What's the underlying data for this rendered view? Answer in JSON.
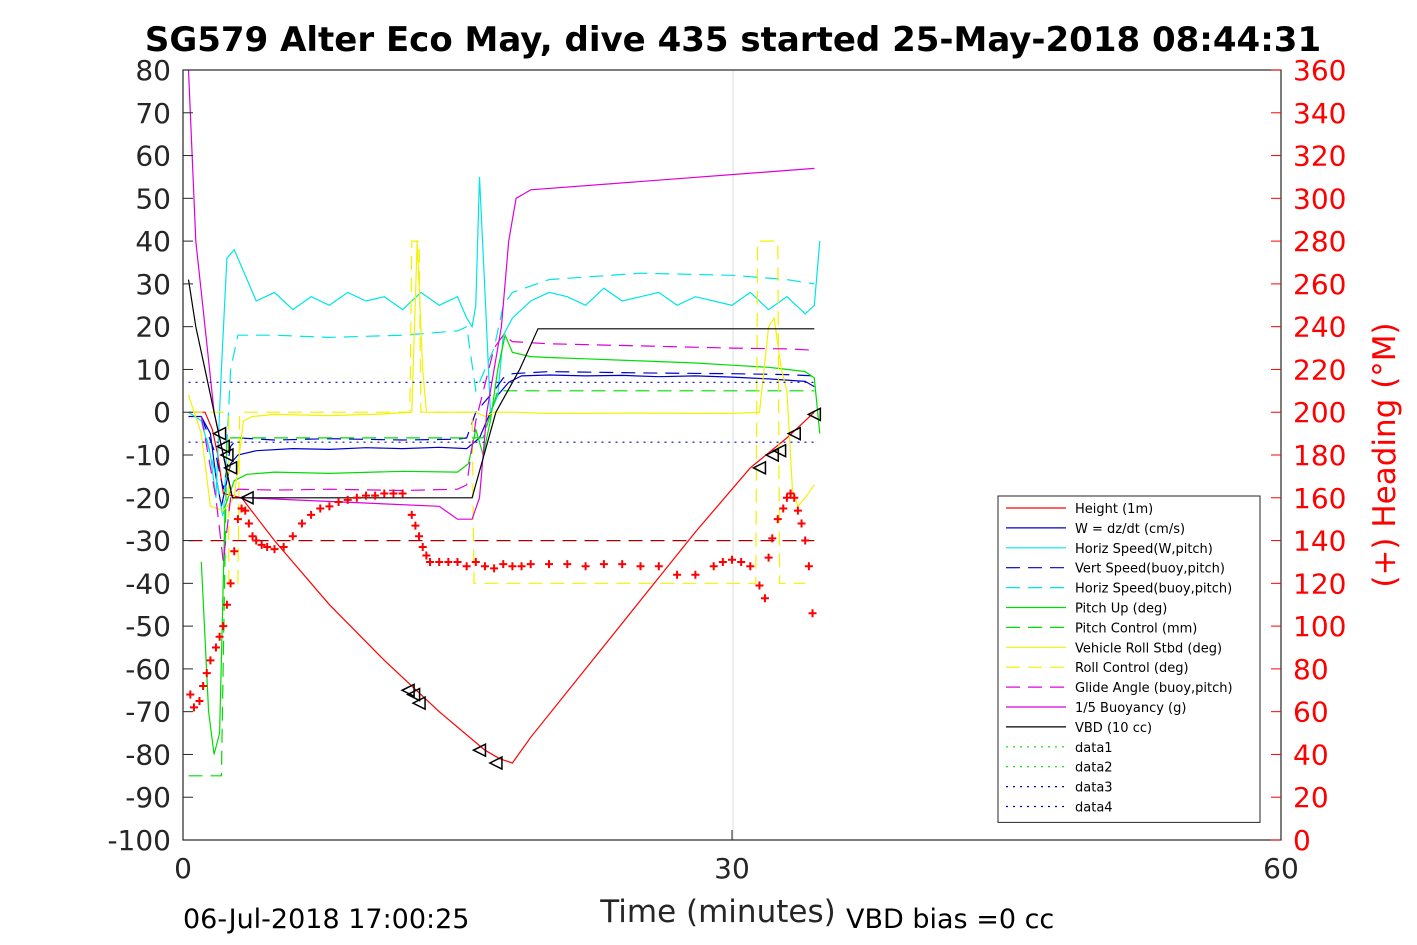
{
  "chart_data": {
    "type": "line",
    "title": "SG579 Alter Eco May, dive 435 started 25-May-2018 08:44:31",
    "xlabel": "Time (minutes)",
    "ylabel": "",
    "y2label": "(+) Heading (°M)",
    "xlim": [
      0,
      60
    ],
    "ylim": [
      -100,
      80
    ],
    "y2lim": [
      0,
      360
    ],
    "xticks": [
      "0",
      "30",
      "60"
    ],
    "yticks": [
      "80",
      "70",
      "60",
      "50",
      "40",
      "30",
      "20",
      "10",
      "0",
      "-10",
      "-20",
      "-30",
      "-40",
      "-50",
      "-60",
      "-70",
      "-80",
      "-90",
      "-100"
    ],
    "y2ticks": [
      "360",
      "340",
      "320",
      "300",
      "280",
      "260",
      "240",
      "220",
      "200",
      "180",
      "160",
      "140",
      "120",
      "100",
      "80",
      "60",
      "40",
      "20",
      "0"
    ],
    "grid": "x-only",
    "legend_position": "lower-right",
    "footer_left": "06-Jul-2018 17:00:25",
    "footer_right": "VBD bias =0 cc",
    "series": [
      {
        "name": "Height (1m)",
        "color": "#ff0000",
        "dash": "solid",
        "x": [
          0.3,
          1.2,
          1.6,
          1.9,
          2.2,
          3.2,
          5,
          8,
          11,
          14,
          16.5,
          17.3,
          18,
          19,
          22,
          25,
          28,
          31,
          33,
          34.5
        ],
        "y": [
          0,
          0,
          -4,
          -10,
          -19,
          -20,
          -30,
          -45,
          -58,
          -70,
          -79,
          -81,
          -82,
          -76,
          -60,
          -44,
          -28,
          -13,
          -6,
          0
        ]
      },
      {
        "name": "W = dz/dt (cm/s)",
        "color": "#0000cc",
        "dash": "solid",
        "x": [
          0.3,
          1,
          1.5,
          1.8,
          2.1,
          2.6,
          3,
          4,
          6,
          8,
          10,
          12,
          14,
          15.5,
          16.2,
          16.8,
          17.2,
          17.8,
          18.5,
          20,
          22,
          24,
          26,
          28,
          30,
          32,
          33,
          34,
          34.5
        ],
        "y": [
          -1,
          -1,
          -5,
          -15,
          -22,
          -12,
          -10,
          -9,
          -8.5,
          -8.7,
          -8.3,
          -8.5,
          -8.2,
          -8.5,
          -6,
          0,
          4,
          7,
          8.5,
          8.7,
          8.5,
          8.6,
          8.3,
          8.5,
          8.2,
          7.8,
          7.5,
          7.2,
          6
        ]
      },
      {
        "name": "Horiz Speed(W,pitch)",
        "color": "#00e5e5",
        "dash": "solid",
        "x": [
          0.3,
          1,
          1.5,
          1.8,
          2.1,
          2.4,
          2.8,
          3.5,
          4,
          5,
          6,
          7,
          8,
          9,
          10,
          11,
          12,
          13,
          14,
          15,
          15.5,
          15.8,
          16,
          16.2,
          16.5,
          16.8,
          17.2,
          17.5,
          18,
          19,
          20,
          21,
          22,
          23,
          24,
          25,
          26,
          27,
          28,
          29,
          30,
          31,
          32,
          33,
          34,
          34.5,
          34.8
        ],
        "y": [
          0,
          -2,
          -10,
          -20,
          10,
          36,
          38,
          31,
          26,
          28,
          24,
          27,
          25,
          28,
          26,
          27,
          24,
          28,
          25,
          27,
          22,
          20,
          25,
          55,
          28,
          0,
          4,
          18,
          22,
          26,
          28,
          27,
          25,
          29,
          26,
          27,
          28,
          25,
          27,
          26,
          25,
          28,
          24,
          27,
          23,
          25,
          40
        ]
      },
      {
        "name": "Vert Speed(buoy,pitch)",
        "color": "#0000cc",
        "dash": "dash",
        "x": [
          1,
          1.8,
          2.2,
          2.6,
          3,
          5,
          8,
          12,
          15,
          15.5,
          16,
          17,
          17.5,
          18,
          20,
          25,
          30,
          33,
          34.5
        ],
        "y": [
          -1,
          -10,
          -18,
          -8,
          -6,
          -6.5,
          -6.2,
          -6.5,
          -6.3,
          -6,
          0,
          5,
          8,
          9,
          9.5,
          9.2,
          9,
          8.8,
          8.5
        ]
      },
      {
        "name": "Horiz Speed(buoy,pitch)",
        "color": "#00e5e5",
        "dash": "dash",
        "x": [
          1,
          1.8,
          2.2,
          2.6,
          3,
          5,
          8,
          12,
          15,
          15.5,
          16,
          17,
          17.5,
          18,
          20,
          25,
          30,
          33,
          34.5
        ],
        "y": [
          -1,
          -15,
          -25,
          10,
          18,
          18,
          17.5,
          18,
          19,
          20,
          5,
          15,
          25,
          28,
          31,
          32.5,
          32,
          31,
          30
        ]
      },
      {
        "name": "Pitch Up (deg)",
        "color": "#00dd00",
        "dash": "solid",
        "x": [
          1,
          1.4,
          1.7,
          2,
          2.3,
          2.8,
          3.5,
          5,
          8,
          12,
          15,
          15.6,
          16,
          16.4,
          16.8,
          17.2,
          17.6,
          18,
          19,
          20,
          22,
          25,
          28,
          30,
          32,
          33,
          34,
          34.5,
          34.8
        ],
        "y": [
          -35,
          -70,
          -80,
          -75,
          -22,
          -16,
          -14.5,
          -14,
          -14.3,
          -13.8,
          -14,
          -12,
          -4,
          -10,
          -2,
          10,
          18,
          14,
          13,
          12.8,
          12.5,
          12,
          11.5,
          11,
          10.5,
          10,
          9.5,
          8,
          -5
        ]
      },
      {
        "name": "Pitch Control (mm)",
        "color": "#00dd00",
        "dash": "dash",
        "x": [
          0.3,
          1.2,
          1.6,
          2.1,
          2.4,
          3,
          16,
          16.4,
          17.2,
          17.6,
          34.5
        ],
        "y": [
          -85,
          -85,
          -85,
          -85,
          -6,
          -6,
          -6,
          -6,
          5,
          5,
          5
        ]
      },
      {
        "name": "Vehicle Roll Stbd (deg)",
        "color": "#f2f200",
        "dash": "solid",
        "x": [
          0.3,
          1,
          1.5,
          2.2,
          2.8,
          3.3,
          3.8,
          5,
          8,
          11,
          12.5,
          12.8,
          13.1,
          13.3,
          14,
          16,
          16.5,
          17,
          18,
          20,
          25,
          30,
          31.5,
          32,
          32.3,
          32.7,
          33,
          33.3,
          33.6,
          34,
          34.5
        ],
        "y": [
          4,
          -5,
          -22,
          -23,
          -20,
          -2,
          -1,
          -0.5,
          -0.8,
          -0.4,
          0,
          40,
          10,
          0,
          0,
          0,
          -1,
          0,
          0,
          -0.3,
          -0.2,
          -0.3,
          0,
          20,
          22,
          10,
          5,
          -18,
          -22,
          -20,
          -17
        ]
      },
      {
        "name": "Roll Control (deg)",
        "color": "#f2f200",
        "dash": "dash",
        "x": [
          0.3,
          1.2,
          2.5,
          2.5,
          3,
          3.1,
          3.3,
          12.4,
          12.5,
          12.9,
          13,
          15.8,
          15.9,
          16.5,
          31.3,
          31.4,
          32.5,
          32.6,
          33.3,
          34
        ],
        "y": [
          0,
          0,
          0,
          -40,
          -40,
          0,
          0,
          0,
          40,
          40,
          0,
          0,
          -40,
          -40,
          -40,
          40,
          40,
          -40,
          -40,
          -40
        ]
      },
      {
        "name": "Glide Angle (buoy,pitch)",
        "color": "#dd00dd",
        "dash": "dash",
        "x": [
          1,
          1.8,
          2.2,
          2.6,
          3,
          5,
          8,
          12,
          15,
          15.5,
          16,
          17,
          17.5,
          18,
          20,
          25,
          30,
          33,
          34.5
        ],
        "y": [
          -1,
          -20,
          -35,
          -20,
          -18,
          -18.2,
          -18,
          -18.3,
          -18,
          -17,
          -2,
          15,
          18,
          16.5,
          16,
          15.5,
          15,
          14.8,
          14.5
        ]
      },
      {
        "name": "1/5 Buoyancy (g)",
        "color": "#dd00dd",
        "dash": "solid",
        "x": [
          0.3,
          0.7,
          1.2,
          1.7,
          2.2,
          2.7,
          3.5,
          14,
          15,
          15.8,
          16.2,
          16.6,
          17,
          17.4,
          17.8,
          18.2,
          18.6,
          19,
          34.5
        ],
        "y": [
          80,
          40,
          20,
          0,
          -10,
          -20,
          -20,
          -22,
          -25,
          -25,
          -20,
          0,
          10,
          20,
          40,
          50,
          51,
          52,
          57
        ]
      },
      {
        "name": "VBD (10 cc)",
        "color": "#000000",
        "dash": "solid",
        "x": [
          0.3,
          0.7,
          1.2,
          1.7,
          2.2,
          2.7,
          3.5,
          15.8,
          17.1,
          18.4,
          19.4,
          34.5
        ],
        "y": [
          31,
          20,
          10,
          0,
          -10,
          -20,
          -20,
          -20,
          0,
          10,
          19.5,
          19.5
        ]
      },
      {
        "name": "data1",
        "color": "#00dd00",
        "dash": "dot",
        "x": [],
        "y": []
      },
      {
        "name": "data2",
        "color": "#00dd00",
        "dash": "dot",
        "x": [],
        "y": []
      },
      {
        "name": "data3",
        "color": "#0000cc",
        "dash": "dot",
        "x": [
          0.3,
          34.5
        ],
        "y": [
          7,
          7
        ]
      },
      {
        "name": "data4",
        "color": "#0000cc",
        "dash": "dot",
        "x": [
          0.3,
          34.5
        ],
        "y": [
          -7,
          -7
        ]
      }
    ],
    "extra_lines": [
      {
        "color": "#aa0000",
        "dash": "dash",
        "x": [
          0.3,
          34.5
        ],
        "y": [
          -30,
          -30
        ]
      }
    ],
    "heading_points": {
      "color": "#ff0000",
      "x": [
        0.4,
        0.6,
        0.9,
        1.1,
        1.3,
        1.5,
        1.8,
        2.0,
        2.2,
        2.4,
        2.6,
        2.8,
        3.0,
        3.2,
        3.4,
        3.6,
        3.8,
        4.0,
        4.3,
        4.6,
        5.0,
        5.5,
        6,
        6.5,
        7,
        7.5,
        8,
        8.5,
        9,
        9.5,
        10,
        10.5,
        11,
        11.5,
        12,
        12.5,
        12.7,
        12.9,
        13.1,
        13.3,
        13.5,
        14,
        14.5,
        15,
        15.5,
        16,
        16.5,
        17,
        17.5,
        18,
        18.5,
        19,
        20,
        21,
        22,
        23,
        24,
        25,
        26,
        27,
        28,
        29,
        29.5,
        30,
        30.5,
        31,
        31.5,
        31.8,
        32,
        32.2,
        32.5,
        32.8,
        33.0,
        33.2,
        33.4,
        33.6,
        33.8,
        34.0,
        34.2,
        34.4
      ],
      "y": [
        68,
        62,
        65,
        72,
        78,
        84,
        90,
        95,
        100,
        110,
        120,
        135,
        150,
        155,
        154,
        148,
        142,
        140,
        138,
        137,
        136,
        137,
        142,
        148,
        152,
        155,
        156,
        158,
        159,
        160,
        161,
        161,
        162,
        162,
        162,
        152,
        147,
        142,
        137,
        133,
        130,
        130,
        130,
        130,
        128,
        130,
        128,
        127,
        129,
        128,
        128,
        129,
        129,
        129,
        128,
        129,
        129,
        128,
        128,
        124,
        124,
        128,
        130,
        131,
        130,
        128,
        119,
        113,
        132,
        141,
        150,
        155,
        160,
        162,
        160,
        154,
        148,
        140,
        128,
        106
      ]
    },
    "direction_markers": {
      "color": "#000000",
      "x": [
        2.0,
        2.2,
        2.4,
        2.6,
        3.5,
        12.3,
        12.6,
        12.9,
        16.2,
        17.1,
        31.5,
        32.2,
        32.6,
        33.4,
        34.5
      ],
      "y": [
        -5,
        -8,
        -10,
        -13,
        -20,
        -65,
        -66,
        -68,
        -79,
        -82,
        -13,
        -10,
        -9,
        -5,
        -0.5
      ]
    }
  }
}
